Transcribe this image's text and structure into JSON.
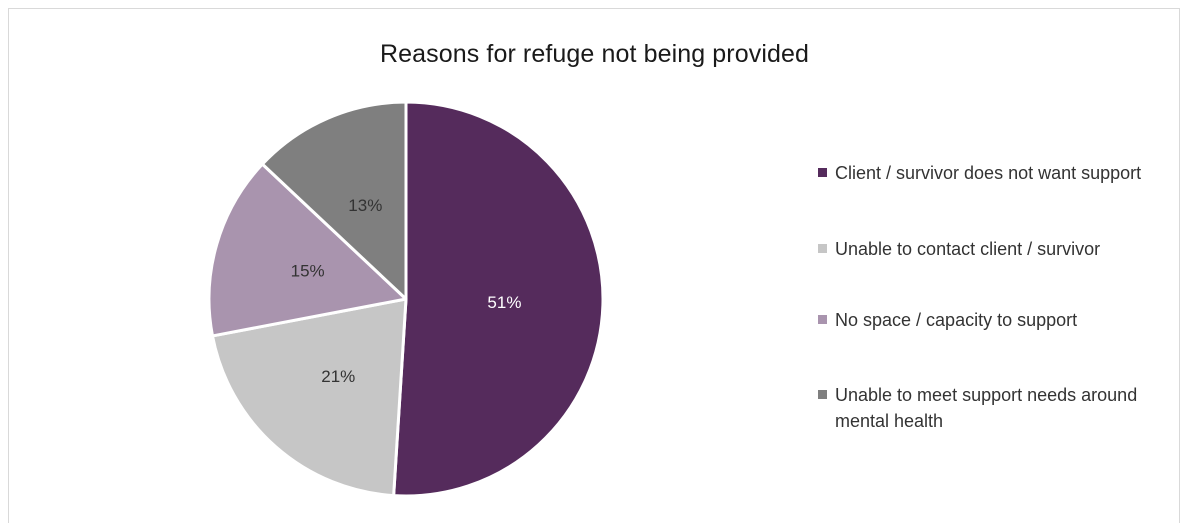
{
  "chart_data": {
    "type": "pie",
    "title": "Reasons for refuge not being provided",
    "categories": [
      "Client / survivor does not want support",
      "Unable to contact client / survivor",
      "No space / capacity to support",
      "Unable to meet support needs around mental health"
    ],
    "values": [
      51,
      21,
      15,
      13
    ],
    "unit": "%",
    "data_labels": [
      "51%",
      "21%",
      "15%",
      "13%"
    ],
    "colors": [
      "#552b5c",
      "#c6c6c6",
      "#a994ae",
      "#7f7f7f"
    ],
    "label_colors": [
      "#ffffff",
      "#333333",
      "#333333",
      "#333333"
    ],
    "start_angle_deg": 0,
    "direction": "clockwise",
    "legend_position": "right"
  }
}
